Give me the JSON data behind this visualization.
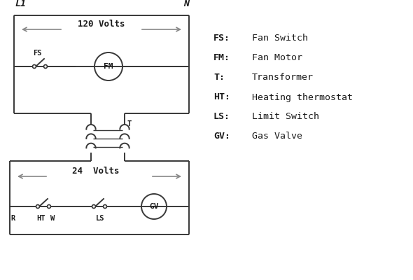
{
  "bg_color": "#ffffff",
  "line_color": "#383838",
  "arrow_color": "#888888",
  "text_color": "#1a1a1a",
  "legend": [
    [
      "FS:",
      "Fan Switch"
    ],
    [
      "FM:",
      "Fan Motor"
    ],
    [
      "T:",
      "Transformer"
    ],
    [
      "HT:",
      "Heating thermostat"
    ],
    [
      "LS:",
      "Limit Switch"
    ],
    [
      "GV:",
      "Gas Valve"
    ]
  ],
  "volts_120": "120 Volts",
  "volts_24": "24  Volts",
  "L1": "L1",
  "N": "N"
}
